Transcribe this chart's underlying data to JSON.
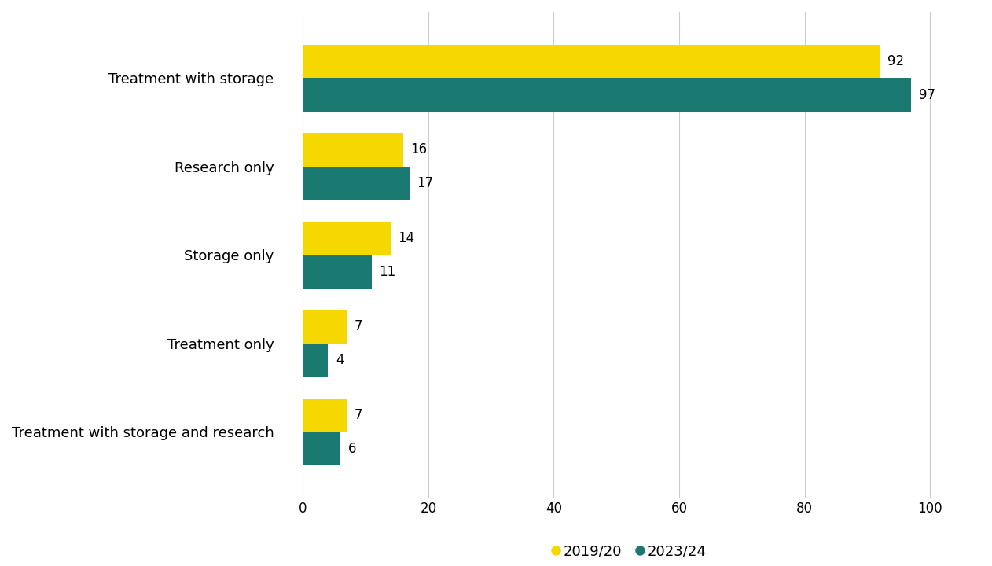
{
  "categories": [
    "Treatment with storage and research",
    "Treatment only",
    "Storage only",
    "Research only",
    "Treatment with storage"
  ],
  "values_2019": [
    7,
    7,
    14,
    16,
    92
  ],
  "values_2023": [
    6,
    4,
    11,
    17,
    97
  ],
  "color_2019": "#F5D800",
  "color_2023": "#1A7A72",
  "bar_height": 0.38,
  "xlim": [
    -4,
    108
  ],
  "xticks": [
    0,
    20,
    40,
    60,
    80,
    100
  ],
  "legend_labels": [
    "2019/20",
    "2023/24"
  ],
  "label_fontsize": 13,
  "tick_fontsize": 12,
  "annotation_fontsize": 12,
  "background_color": "#ffffff",
  "grid_color": "#cccccc"
}
